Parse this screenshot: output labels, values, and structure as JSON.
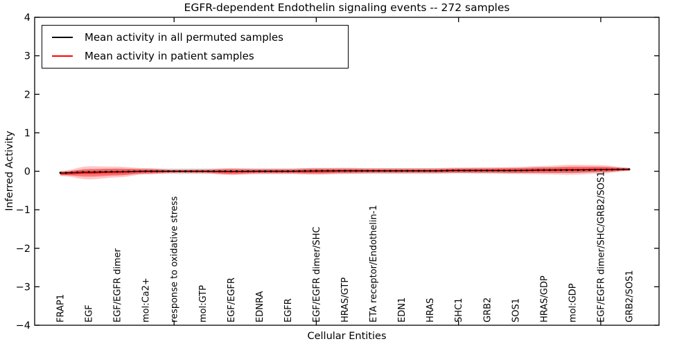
{
  "figure": {
    "background": "#ffffff"
  },
  "chart_data": {
    "type": "line",
    "title": "EGFR-dependent Endothelin signaling events -- 272 samples",
    "xlabel": "Cellular Entities",
    "ylabel": "Inferred Activity",
    "ylim": [
      -4,
      4
    ],
    "yticks": [
      4,
      3,
      2,
      1,
      0,
      -1,
      -2,
      -3,
      -4
    ],
    "ytick_labels": [
      "4",
      "3",
      "2",
      "1",
      "0",
      "−1",
      "−2",
      "−3",
      "−4"
    ],
    "grid": false,
    "legend_position": "upper left",
    "xtick_marked_label_indices": [
      4,
      9,
      14,
      19
    ],
    "points_per_category_interval": 5,
    "categories": [
      "FRAP1",
      "EGF",
      "EGF/EGFR dimer",
      "mol:Ca2+",
      "response to oxidative stress",
      "mol:GTP",
      "EGF/EGFR",
      "EDNRA",
      "EGFR",
      "EGF/EGFR dimer/SHC",
      "HRAS/GTP",
      "ETA receptor/Endothelin-1",
      "EDN1",
      "HRAS",
      "SHC1",
      "GRB2",
      "SOS1",
      "HRAS/GDP",
      "mol:GDP",
      "EGF/EGFR dimer/SHC/GRB2/SOS1",
      "GRB2/SOS1"
    ],
    "series": [
      {
        "name": "Mean activity in all permuted samples",
        "color": "#000000",
        "marker": "square",
        "values": [
          -0.04,
          -0.02,
          -0.01,
          0.0,
          0.0,
          0.0,
          0.0,
          0.0,
          0.0,
          0.01,
          0.01,
          0.01,
          0.01,
          0.01,
          0.02,
          0.02,
          0.02,
          0.03,
          0.03,
          0.04,
          0.05
        ]
      },
      {
        "name": "Mean activity in patient samples",
        "color": "#ff0000",
        "marker": "none",
        "values": [
          -0.06,
          -0.04,
          -0.02,
          0.0,
          0.0,
          0.0,
          -0.01,
          0.0,
          0.0,
          0.0,
          0.01,
          0.01,
          0.01,
          0.01,
          0.02,
          0.02,
          0.02,
          0.03,
          0.04,
          0.05,
          0.05
        ]
      }
    ],
    "bands": [
      {
        "name": "permuted-samples-spread",
        "color": "rgba(0,0,0,0.16)",
        "center_series": 0,
        "halfwidths": [
          0.05,
          0.06,
          0.07,
          0.07,
          0.07,
          0.07,
          0.07,
          0.07,
          0.07,
          0.07,
          0.07,
          0.07,
          0.07,
          0.07,
          0.07,
          0.07,
          0.07,
          0.07,
          0.07,
          0.06,
          0.04
        ]
      },
      {
        "name": "patient-samples-spread-outer",
        "color": "rgba(255,0,0,0.22)",
        "center_series": 1,
        "halfwidths": [
          0.06,
          0.17,
          0.14,
          0.08,
          0.04,
          0.05,
          0.09,
          0.07,
          0.07,
          0.09,
          0.08,
          0.07,
          0.07,
          0.07,
          0.07,
          0.08,
          0.09,
          0.11,
          0.13,
          0.11,
          0.04
        ]
      },
      {
        "name": "patient-samples-spread-inner",
        "color": "rgba(255,0,0,0.40)",
        "center_series": 1,
        "halfwidths": [
          0.04,
          0.1,
          0.09,
          0.05,
          0.03,
          0.03,
          0.06,
          0.04,
          0.04,
          0.06,
          0.05,
          0.04,
          0.04,
          0.04,
          0.05,
          0.05,
          0.06,
          0.07,
          0.08,
          0.07,
          0.03
        ]
      }
    ]
  }
}
